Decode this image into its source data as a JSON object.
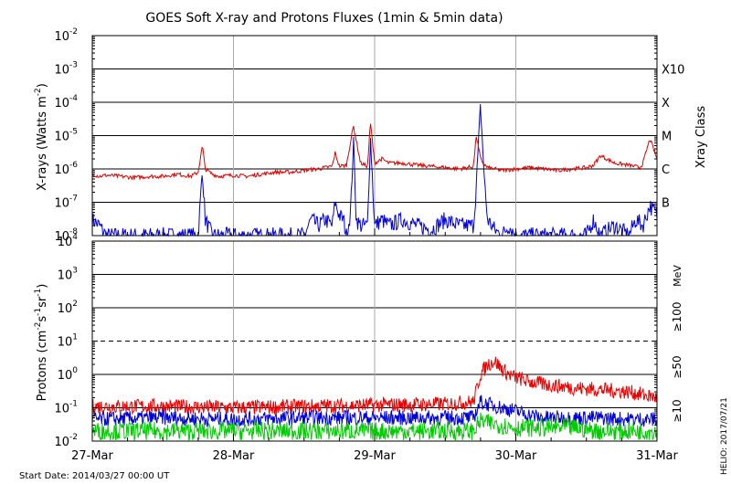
{
  "title": "GOES Soft X-ray and Protons Fluxes   (1min & 5min data)",
  "start_date_label": "Start Date: 2014/03/27 00:00 UT",
  "credit": "HELIO: 2017/07/21",
  "xray_panel": {
    "ylabel": "X-rays (Watts m",
    "ylabel_sup": "-2",
    "ylabel_close": ")",
    "right_title": "Xray Class",
    "yticks": [
      {
        "base": "10",
        "exp": "-2",
        "value": -2
      },
      {
        "base": "10",
        "exp": "-3",
        "value": -3
      },
      {
        "base": "10",
        "exp": "-4",
        "value": -4
      },
      {
        "base": "10",
        "exp": "-5",
        "value": -5
      },
      {
        "base": "10",
        "exp": "-6",
        "value": -6
      },
      {
        "base": "10",
        "exp": "-7",
        "value": -7
      },
      {
        "base": "10",
        "exp": "-8",
        "value": -8
      }
    ],
    "class_labels": [
      {
        "label": "X10",
        "value": -3
      },
      {
        "label": "X",
        "value": -4
      },
      {
        "label": "M",
        "value": -5
      },
      {
        "label": "C",
        "value": -6
      },
      {
        "label": "B",
        "value": -7
      }
    ]
  },
  "proton_panel": {
    "ylabel": "Protons (cm",
    "ylabel_sup1": "-2",
    "ylabel_mid1": "s",
    "ylabel_sup2": "-1",
    "ylabel_mid2": "sr",
    "ylabel_sup3": "-1",
    "ylabel_close": ")",
    "yticks": [
      {
        "base": "10",
        "exp": "4",
        "value": 4
      },
      {
        "base": "10",
        "exp": "3",
        "value": 3
      },
      {
        "base": "10",
        "exp": "2",
        "value": 2
      },
      {
        "base": "10",
        "exp": "1",
        "value": 1
      },
      {
        "base": "10",
        "exp": "0",
        "value": 0
      },
      {
        "base": "10",
        "exp": "-1",
        "value": -1
      },
      {
        "base": "10",
        "exp": "-2",
        "value": -2
      }
    ],
    "energy_unit": "MeV",
    "energy_labels": [
      {
        "label": "≥100",
        "color": "#00cc00"
      },
      {
        "label": "≥50",
        "color": "#0000dd"
      },
      {
        "label": "≥10",
        "color": "#ee0000"
      }
    ]
  },
  "x_axis": {
    "ticks": [
      "27-Mar",
      "28-Mar",
      "29-Mar",
      "30-Mar",
      "31-Mar"
    ]
  },
  "colors": {
    "xray_long": "#dd0000",
    "xray_short": "#0000dd",
    "proton_10": "#ee0000",
    "proton_50": "#0000dd",
    "proton_100": "#00cc00"
  },
  "chart_data": [
    {
      "type": "line",
      "title": "GOES Soft X-ray and Protons Fluxes   (1min & 5min data)",
      "ylabel": "X-rays (Watts m-2)",
      "yscale": "log",
      "ylim": [
        1e-08,
        0.01
      ],
      "xlim": [
        "2014-03-27",
        "2014-03-31"
      ],
      "x_unit": "days since 2014-03-27 00:00 UT",
      "series": [
        {
          "x": [
            0,
            0.05,
            0.1,
            0.2,
            0.3,
            0.4,
            0.5,
            0.55,
            0.6,
            0.7,
            0.75,
            0.78,
            0.8,
            0.85,
            0.9,
            1.0,
            1.1,
            1.2,
            1.3,
            1.4,
            1.5,
            1.6,
            1.7,
            1.72,
            1.75,
            1.8,
            1.85,
            1.9,
            1.95,
            1.97,
            2.0,
            2.05,
            2.1,
            2.2,
            2.3,
            2.4,
            2.5,
            2.6,
            2.7,
            2.72,
            2.75,
            2.78,
            2.8,
            2.9,
            3.0,
            3.1,
            3.2,
            3.3,
            3.4,
            3.5,
            3.55,
            3.6,
            3.7,
            3.8,
            3.88,
            3.9,
            3.95,
            4.0
          ],
          "y": [
            7e-07,
            6e-07,
            6.5e-07,
            6e-07,
            5.5e-07,
            6e-07,
            6e-07,
            6.5e-07,
            7e-07,
            6e-07,
            8e-07,
            5e-06,
            1e-06,
            7e-07,
            6e-07,
            6.5e-07,
            6e-07,
            7e-07,
            8e-07,
            8e-07,
            9e-07,
            1e-06,
            1.2e-06,
            3e-06,
            1.2e-06,
            1.3e-06,
            2e-05,
            1.5e-06,
            1.2e-06,
            2.5e-05,
            1.5e-06,
            2e-06,
            1.5e-06,
            1.5e-06,
            1.3e-06,
            1.2e-06,
            1.1e-06,
            1e-06,
            1.2e-06,
            1e-05,
            2e-06,
            1.3e-06,
            1.1e-06,
            9e-07,
            1e-06,
            1.1e-06,
            1e-06,
            9e-07,
            1e-06,
            1.1e-06,
            1.3e-06,
            2.5e-06,
            1.5e-06,
            1.3e-06,
            1.1e-06,
            1.5e-06,
            8e-06,
            2e-06
          ]
        },
        {
          "x": [
            0,
            0.05,
            0.1,
            0.5,
            0.7,
            0.75,
            0.78,
            0.8,
            0.85,
            1.0,
            1.5,
            1.55,
            1.6,
            1.65,
            1.7,
            1.72,
            1.75,
            1.78,
            1.8,
            1.83,
            1.85,
            1.87,
            1.9,
            1.95,
            1.97,
            2.0,
            2.05,
            2.1,
            2.2,
            2.3,
            2.4,
            2.5,
            2.6,
            2.7,
            2.72,
            2.75,
            2.78,
            2.8,
            2.85,
            2.9,
            2.95,
            3.0,
            3.2,
            3.5,
            3.55,
            3.6,
            3.7,
            3.8,
            3.85,
            3.9,
            3.95,
            4.0
          ],
          "y": [
            3e-08,
            2e-08,
            1e-08,
            1e-08,
            1e-08,
            1e-08,
            1e-06,
            3e-08,
            1e-08,
            1e-08,
            1e-08,
            3e-08,
            2e-08,
            3e-08,
            2e-08,
            1e-07,
            4e-08,
            3e-08,
            1e-08,
            5e-08,
            8e-06,
            3e-08,
            2e-08,
            2e-08,
            1e-05,
            2e-08,
            3e-08,
            2e-08,
            3e-08,
            2e-08,
            1.5e-08,
            3e-08,
            2e-08,
            2e-08,
            3e-07,
            8e-05,
            3e-07,
            3e-08,
            1.5e-08,
            1e-08,
            2e-08,
            1e-08,
            1e-08,
            1e-08,
            3e-08,
            1e-08,
            2e-08,
            1e-08,
            3e-08,
            2e-08,
            8e-08,
            4e-08
          ]
        }
      ]
    },
    {
      "type": "line",
      "ylabel": "Protons (cm-2 s-1 sr-1)",
      "yscale": "log",
      "ylim": [
        0.01,
        10000
      ],
      "xlim": [
        "2014-03-27",
        "2014-03-31"
      ],
      "x_unit": "days since 2014-03-27 00:00 UT",
      "series": [
        {
          "name": "≥10",
          "x": [
            0,
            0.5,
            1.0,
            1.5,
            2.0,
            2.5,
            2.7,
            2.75,
            2.8,
            2.85,
            2.9,
            2.95,
            3.0,
            3.05,
            3.1,
            3.2,
            3.4,
            3.6,
            3.8,
            4.0
          ],
          "y": [
            0.11,
            0.11,
            0.1,
            0.11,
            0.12,
            0.13,
            0.15,
            1.0,
            2.0,
            2.5,
            1.5,
            1.0,
            0.8,
            0.7,
            0.6,
            0.5,
            0.4,
            0.35,
            0.3,
            0.2
          ]
        },
        {
          "name": "≥50",
          "x": [
            0,
            0.5,
            1.0,
            1.5,
            2.0,
            2.5,
            2.7,
            2.75,
            2.8,
            2.9,
            3.0,
            3.1,
            3.2,
            3.4,
            3.6,
            3.8,
            4.0
          ],
          "y": [
            0.045,
            0.05,
            0.045,
            0.05,
            0.05,
            0.05,
            0.05,
            0.15,
            0.13,
            0.1,
            0.08,
            0.06,
            0.05,
            0.05,
            0.05,
            0.045,
            0.045
          ]
        },
        {
          "name": "≥100",
          "x": [
            0,
            0.5,
            1.0,
            1.5,
            2.0,
            2.5,
            2.7,
            2.75,
            2.8,
            2.9,
            3.0,
            3.2,
            3.4,
            3.6,
            3.8,
            4.0
          ],
          "y": [
            0.02,
            0.02,
            0.02,
            0.02,
            0.02,
            0.02,
            0.02,
            0.04,
            0.035,
            0.03,
            0.025,
            0.025,
            0.025,
            0.02,
            0.02,
            0.02
          ]
        }
      ]
    }
  ]
}
